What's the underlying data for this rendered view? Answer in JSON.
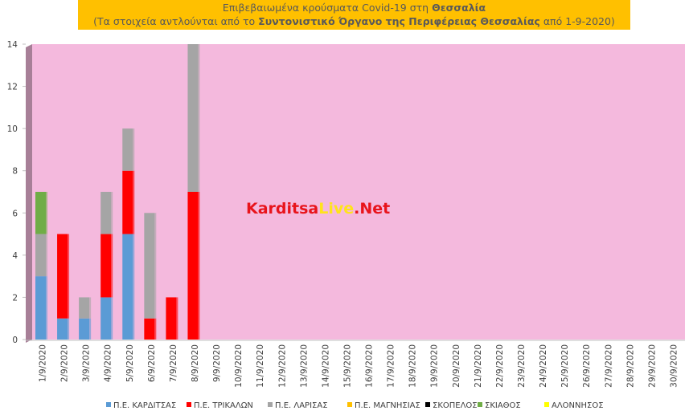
{
  "chart_data": {
    "type": "bar",
    "stacked": true,
    "title": [
      [
        "Επιβεβαιωμένα κρούσματα Covid-19 στη",
        "Θεσσαλία"
      ],
      [
        "(Τα στοιχεία αντλούνται από το",
        "Συντονιστικό Όργανο της Περιφέρειας Θεσσαλίας",
        "από 1-9-2020)"
      ]
    ],
    "annotation": [
      "Karditsa",
      "Live",
      ".Net"
    ],
    "categories": [
      "1/9/2020",
      "2/9/2020",
      "3/9/2020",
      "4/9/2020",
      "5/9/2020",
      "6/9/2020",
      "7/9/2020",
      "8/9/2020",
      "9/9/2020",
      "10/9/2020",
      "11/9/2020",
      "12/9/2020",
      "13/9/2020",
      "14/9/2020",
      "15/9/2020",
      "16/9/2020",
      "17/9/2020",
      "18/9/2020",
      "19/9/2020",
      "20/9/2020",
      "21/9/2020",
      "22/9/2020",
      "23/9/2020",
      "24/9/2020",
      "25/9/2020",
      "26/9/2020",
      "27/9/2020",
      "28/9/2020",
      "29/9/2020",
      "30/9/2020"
    ],
    "series": [
      {
        "name": "Π.Ε. ΚΑΡΔΙΤΣΑΣ",
        "color": "#5b9bd5",
        "values": [
          3,
          1,
          1,
          2,
          5,
          0,
          0,
          0,
          null,
          null,
          null,
          null,
          null,
          null,
          null,
          null,
          null,
          null,
          null,
          null,
          null,
          null,
          null,
          null,
          null,
          null,
          null,
          null,
          null,
          null
        ]
      },
      {
        "name": "Π.Ε. ΤΡΙΚΑΛΩΝ",
        "color": "#ff0000",
        "values": [
          0,
          4,
          0,
          3,
          3,
          1,
          2,
          7,
          null,
          null,
          null,
          null,
          null,
          null,
          null,
          null,
          null,
          null,
          null,
          null,
          null,
          null,
          null,
          null,
          null,
          null,
          null,
          null,
          null,
          null
        ]
      },
      {
        "name": "Π.Ε. ΛΑΡΙΣΑΣ",
        "color": "#a5a5a5",
        "values": [
          2,
          0,
          1,
          2,
          2,
          5,
          0,
          7,
          null,
          null,
          null,
          null,
          null,
          null,
          null,
          null,
          null,
          null,
          null,
          null,
          null,
          null,
          null,
          null,
          null,
          null,
          null,
          null,
          null,
          null
        ]
      },
      {
        "name": "Π.Ε. ΜΑΓΝΗΣΙΑΣ",
        "color": "#ffc000",
        "values": [
          0,
          0,
          0,
          0,
          0,
          0,
          0,
          0,
          null,
          null,
          null,
          null,
          null,
          null,
          null,
          null,
          null,
          null,
          null,
          null,
          null,
          null,
          null,
          null,
          null,
          null,
          null,
          null,
          null,
          null
        ]
      },
      {
        "name": "ΣΚΟΠΕΛΟΣ",
        "color": "#000000",
        "values": [
          0,
          0,
          0,
          0,
          0,
          0,
          0,
          0,
          null,
          null,
          null,
          null,
          null,
          null,
          null,
          null,
          null,
          null,
          null,
          null,
          null,
          null,
          null,
          null,
          null,
          null,
          null,
          null,
          null,
          null
        ]
      },
      {
        "name": "ΣΚΙΑΘΟΣ",
        "color": "#70ad47",
        "values": [
          2,
          0,
          0,
          0,
          0,
          0,
          0,
          0,
          null,
          null,
          null,
          null,
          null,
          null,
          null,
          null,
          null,
          null,
          null,
          null,
          null,
          null,
          null,
          null,
          null,
          null,
          null,
          null,
          null,
          null
        ]
      },
      {
        "name": "ΑΛΟΝΝΗΣΟΣ",
        "color": "#ffff00",
        "values": [
          0,
          0,
          0,
          0,
          0,
          0,
          0,
          0,
          null,
          null,
          null,
          null,
          null,
          null,
          null,
          null,
          null,
          null,
          null,
          null,
          null,
          null,
          null,
          null,
          null,
          null,
          null,
          null,
          null,
          null
        ]
      }
    ],
    "ylim": [
      0,
      14
    ],
    "yticks": [
      0,
      2,
      4,
      6,
      8,
      10,
      12,
      14
    ],
    "background": "#f4b9dd",
    "legend": "bottom"
  }
}
